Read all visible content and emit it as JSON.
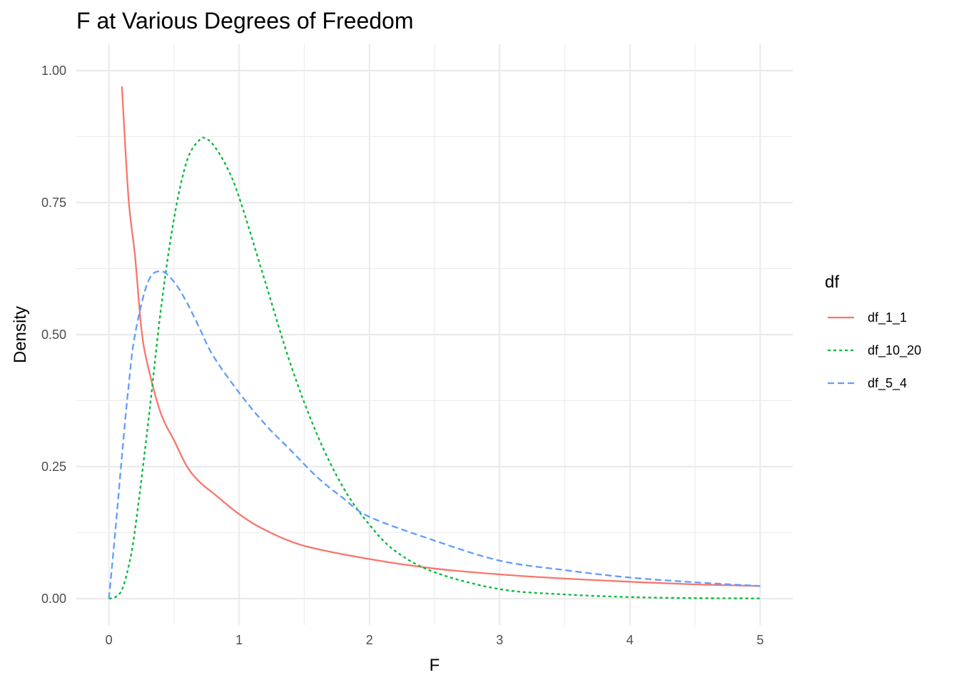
{
  "chart_data": {
    "type": "line",
    "title": "F at Various Degrees of Freedom",
    "xlabel": "F",
    "ylabel": "Density",
    "xlim": [
      -0.25,
      5.25
    ],
    "ylim": [
      -0.05,
      1.05
    ],
    "x_ticks": [
      0,
      1,
      2,
      3,
      4,
      5
    ],
    "x_tick_labels": [
      "0",
      "1",
      "2",
      "3",
      "4",
      "5"
    ],
    "y_ticks": [
      0,
      0.25,
      0.5,
      0.75,
      1.0
    ],
    "y_tick_labels": [
      "0.00",
      "0.25",
      "0.50",
      "0.75",
      "1.00"
    ],
    "grid": true,
    "legend": {
      "title": "df",
      "placement": "right"
    },
    "series": [
      {
        "name": "df_1_1",
        "color": "#F8766D",
        "dash": "solid",
        "points": [
          [
            0.1,
            0.97
          ],
          [
            0.15,
            0.76
          ],
          [
            0.2,
            0.65
          ],
          [
            0.25,
            0.51
          ],
          [
            0.3,
            0.44
          ],
          [
            0.4,
            0.35
          ],
          [
            0.5,
            0.3
          ],
          [
            0.6,
            0.25
          ],
          [
            0.7,
            0.22
          ],
          [
            0.8,
            0.2
          ],
          [
            1.0,
            0.16
          ],
          [
            1.2,
            0.13
          ],
          [
            1.5,
            0.1
          ],
          [
            2.0,
            0.075
          ],
          [
            2.5,
            0.057
          ],
          [
            3.0,
            0.046
          ],
          [
            3.5,
            0.038
          ],
          [
            4.0,
            0.032
          ],
          [
            4.5,
            0.027
          ],
          [
            5.0,
            0.024
          ]
        ]
      },
      {
        "name": "df_10_20",
        "color": "#00BA38",
        "dash": "dotted",
        "points": [
          [
            0,
            0
          ],
          [
            0.05,
            0.003
          ],
          [
            0.1,
            0.017
          ],
          [
            0.15,
            0.06
          ],
          [
            0.2,
            0.13
          ],
          [
            0.3,
            0.33
          ],
          [
            0.4,
            0.55
          ],
          [
            0.5,
            0.72
          ],
          [
            0.6,
            0.83
          ],
          [
            0.7,
            0.87
          ],
          [
            0.75,
            0.87
          ],
          [
            0.8,
            0.86
          ],
          [
            0.9,
            0.82
          ],
          [
            1.0,
            0.76
          ],
          [
            1.2,
            0.6
          ],
          [
            1.4,
            0.44
          ],
          [
            1.6,
            0.31
          ],
          [
            1.8,
            0.21
          ],
          [
            2.0,
            0.14
          ],
          [
            2.2,
            0.09
          ],
          [
            2.5,
            0.05
          ],
          [
            3.0,
            0.018
          ],
          [
            3.5,
            0.008
          ],
          [
            4.0,
            0.003
          ],
          [
            4.5,
            0.001
          ],
          [
            5.0,
            0.0005
          ]
        ]
      },
      {
        "name": "df_5_4",
        "color": "#619CFF",
        "dash": "dashed",
        "points": [
          [
            0,
            0
          ],
          [
            0.05,
            0.13
          ],
          [
            0.1,
            0.27
          ],
          [
            0.15,
            0.4
          ],
          [
            0.2,
            0.5
          ],
          [
            0.3,
            0.6
          ],
          [
            0.4,
            0.62
          ],
          [
            0.5,
            0.6
          ],
          [
            0.6,
            0.56
          ],
          [
            0.7,
            0.51
          ],
          [
            0.8,
            0.46
          ],
          [
            1.0,
            0.39
          ],
          [
            1.2,
            0.33
          ],
          [
            1.4,
            0.28
          ],
          [
            1.6,
            0.23
          ],
          [
            1.8,
            0.19
          ],
          [
            2.0,
            0.155
          ],
          [
            2.5,
            0.11
          ],
          [
            3.0,
            0.072
          ],
          [
            3.5,
            0.054
          ],
          [
            4.0,
            0.04
          ],
          [
            4.5,
            0.031
          ],
          [
            5.0,
            0.024
          ]
        ]
      }
    ]
  }
}
